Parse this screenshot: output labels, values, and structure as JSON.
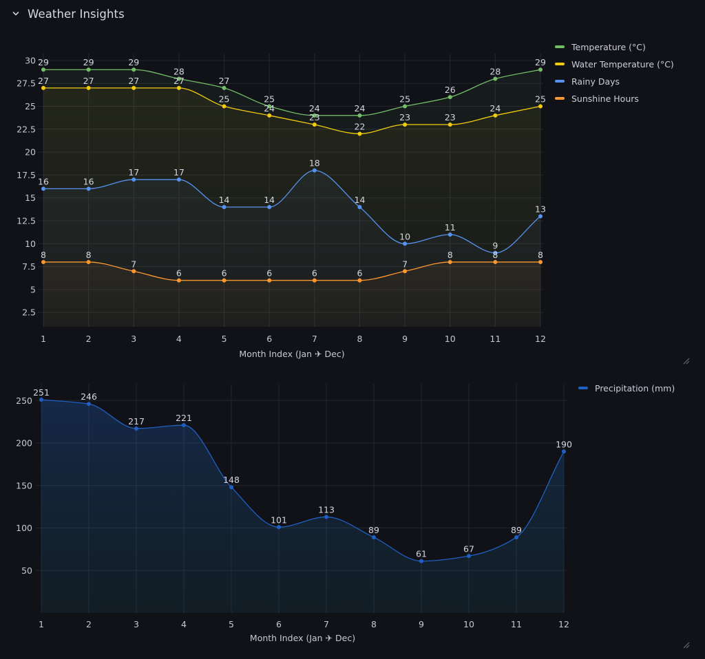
{
  "row": {
    "title": "Weather Insights",
    "collapse_icon": "chevron-down-icon"
  },
  "colors": {
    "background": "#111217",
    "grid": "#24262d",
    "temperature": "#73bf69",
    "water_temperature": "#f2cc0c",
    "rainy_days": "#5794f2",
    "sunshine_hours": "#ff9830",
    "precipitation": "#1f60c4"
  },
  "chart_data": [
    {
      "type": "line",
      "title": "",
      "xlabel": "Month Index (Jan ✈ Dec)",
      "ylabel": "",
      "x": [
        1,
        2,
        3,
        4,
        5,
        6,
        7,
        8,
        9,
        10,
        11,
        12
      ],
      "x_ticks": [
        "1",
        "2",
        "3",
        "4",
        "5",
        "6",
        "7",
        "8",
        "9",
        "10",
        "11",
        "12"
      ],
      "y_ticks": [
        "2.5",
        "5",
        "7.5",
        "10",
        "12.5",
        "15",
        "17.5",
        "20",
        "22.5",
        "25",
        "27.5",
        "30"
      ],
      "y_tick_values": [
        2.5,
        5,
        7.5,
        10,
        12.5,
        15,
        17.5,
        20,
        22.5,
        25,
        27.5,
        30
      ],
      "ylim": [
        0,
        31.5
      ],
      "grid": true,
      "legend_position": "right",
      "series": [
        {
          "name": "Temperature (°C)",
          "color_key": "temperature",
          "values": [
            29,
            29,
            29,
            28,
            27,
            25,
            24,
            24,
            25,
            26,
            28,
            29
          ]
        },
        {
          "name": "Water Temperature (°C)",
          "color_key": "water_temperature",
          "values": [
            27,
            27,
            27,
            27,
            25,
            24,
            23,
            22,
            23,
            23,
            24,
            25
          ]
        },
        {
          "name": "Rainy Days",
          "color_key": "rainy_days",
          "values": [
            16,
            16,
            17,
            17,
            14,
            14,
            18,
            14,
            10,
            11,
            9,
            13
          ]
        },
        {
          "name": "Sunshine Hours",
          "color_key": "sunshine_hours",
          "values": [
            8,
            8,
            7,
            6,
            6,
            6,
            6,
            6,
            7,
            8,
            8,
            8
          ]
        }
      ]
    },
    {
      "type": "area",
      "title": "",
      "xlabel": "Month Index (Jan ✈ Dec)",
      "ylabel": "",
      "x": [
        1,
        2,
        3,
        4,
        5,
        6,
        7,
        8,
        9,
        10,
        11,
        12
      ],
      "x_ticks": [
        "1",
        "2",
        "3",
        "4",
        "5",
        "6",
        "7",
        "8",
        "9",
        "10",
        "11",
        "12"
      ],
      "y_ticks": [
        "50",
        "100",
        "150",
        "200",
        "250"
      ],
      "y_tick_values": [
        50,
        100,
        150,
        200,
        250
      ],
      "ylim": [
        0,
        255
      ],
      "grid": true,
      "legend_position": "right",
      "series": [
        {
          "name": "Precipitation (mm)",
          "color_key": "precipitation",
          "values": [
            251,
            246,
            217,
            221,
            148,
            101,
            113,
            89,
            61,
            67,
            89,
            190
          ]
        }
      ]
    }
  ]
}
